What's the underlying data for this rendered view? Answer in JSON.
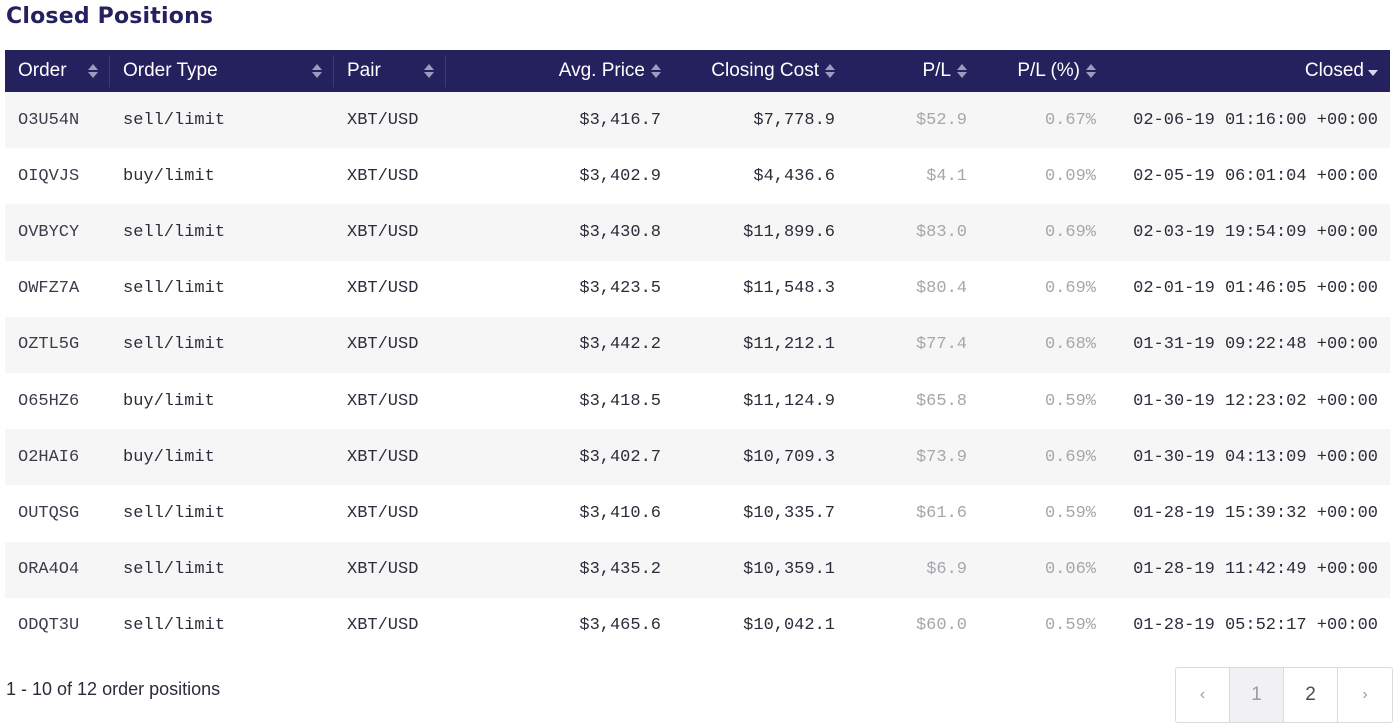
{
  "page": {
    "title": "Closed Positions"
  },
  "table": {
    "columns": [
      {
        "key": "order",
        "label": "Order",
        "sort": "both"
      },
      {
        "key": "type",
        "label": "Order Type",
        "sort": "both"
      },
      {
        "key": "pair",
        "label": "Pair",
        "sort": "both"
      },
      {
        "key": "avg_price",
        "label": "Avg. Price",
        "sort": "both"
      },
      {
        "key": "closing_cost",
        "label": "Closing Cost",
        "sort": "both"
      },
      {
        "key": "pl",
        "label": "P/L",
        "sort": "both"
      },
      {
        "key": "pl_pct",
        "label": "P/L (%)",
        "sort": "both"
      },
      {
        "key": "closed",
        "label": "Closed",
        "sort": "desc"
      }
    ],
    "rows": [
      {
        "order": "O3U54N",
        "type": "sell/limit",
        "pair": "XBT/USD",
        "avg_price": "$3,416.7",
        "closing_cost": "$7,778.9",
        "pl": "$52.9",
        "pl_pct": "0.67%",
        "closed": "02-06-19 01:16:00 +00:00"
      },
      {
        "order": "OIQVJS",
        "type": "buy/limit",
        "pair": "XBT/USD",
        "avg_price": "$3,402.9",
        "closing_cost": "$4,436.6",
        "pl": "$4.1",
        "pl_pct": "0.09%",
        "closed": "02-05-19 06:01:04 +00:00"
      },
      {
        "order": "OVBYCY",
        "type": "sell/limit",
        "pair": "XBT/USD",
        "avg_price": "$3,430.8",
        "closing_cost": "$11,899.6",
        "pl": "$83.0",
        "pl_pct": "0.69%",
        "closed": "02-03-19 19:54:09 +00:00"
      },
      {
        "order": "OWFZ7A",
        "type": "sell/limit",
        "pair": "XBT/USD",
        "avg_price": "$3,423.5",
        "closing_cost": "$11,548.3",
        "pl": "$80.4",
        "pl_pct": "0.69%",
        "closed": "02-01-19 01:46:05 +00:00"
      },
      {
        "order": "OZTL5G",
        "type": "sell/limit",
        "pair": "XBT/USD",
        "avg_price": "$3,442.2",
        "closing_cost": "$11,212.1",
        "pl": "$77.4",
        "pl_pct": "0.68%",
        "closed": "01-31-19 09:22:48 +00:00"
      },
      {
        "order": "O65HZ6",
        "type": "buy/limit",
        "pair": "XBT/USD",
        "avg_price": "$3,418.5",
        "closing_cost": "$11,124.9",
        "pl": "$65.8",
        "pl_pct": "0.59%",
        "closed": "01-30-19 12:23:02 +00:00"
      },
      {
        "order": "O2HAI6",
        "type": "buy/limit",
        "pair": "XBT/USD",
        "avg_price": "$3,402.7",
        "closing_cost": "$10,709.3",
        "pl": "$73.9",
        "pl_pct": "0.69%",
        "closed": "01-30-19 04:13:09 +00:00"
      },
      {
        "order": "OUTQSG",
        "type": "sell/limit",
        "pair": "XBT/USD",
        "avg_price": "$3,410.6",
        "closing_cost": "$10,335.7",
        "pl": "$61.6",
        "pl_pct": "0.59%",
        "closed": "01-28-19 15:39:32 +00:00"
      },
      {
        "order": "ORA4O4",
        "type": "sell/limit",
        "pair": "XBT/USD",
        "avg_price": "$3,435.2",
        "closing_cost": "$10,359.1",
        "pl": "$6.9",
        "pl_pct": "0.06%",
        "closed": "01-28-19 11:42:49 +00:00"
      },
      {
        "order": "ODQT3U",
        "type": "sell/limit",
        "pair": "XBT/USD",
        "avg_price": "$3,465.6",
        "closing_cost": "$10,042.1",
        "pl": "$60.0",
        "pl_pct": "0.59%",
        "closed": "01-28-19 05:52:17 +00:00"
      }
    ]
  },
  "footer": {
    "summary": "1 - 10 of 12 order positions"
  },
  "pagination": {
    "prev": "‹",
    "pages": [
      "1",
      "2"
    ],
    "active_page": "1",
    "next": "›"
  },
  "colors": {
    "header_bg": "#24215e",
    "title": "#24215e",
    "muted": "#a6a6ad"
  }
}
